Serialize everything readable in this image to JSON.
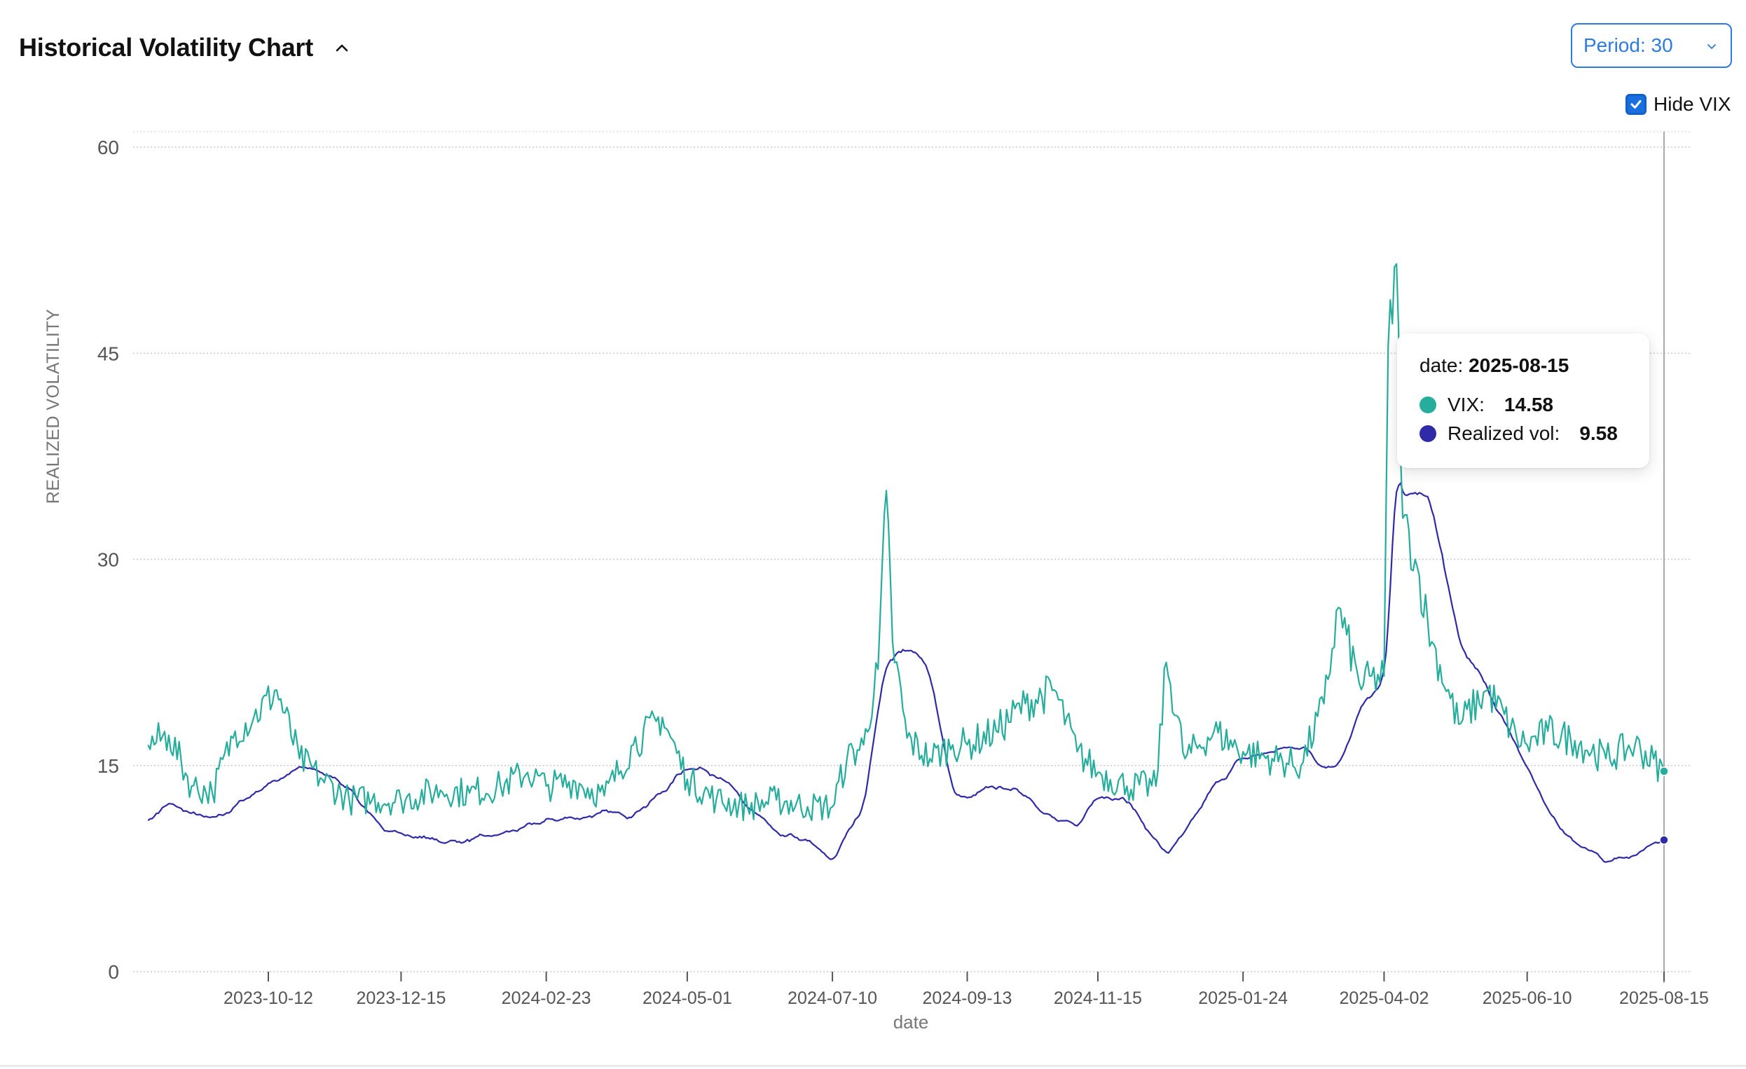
{
  "header": {
    "title": "Historical Volatility Chart",
    "collapse_icon": "chevron-up-icon"
  },
  "period_select": {
    "label": "Period: 30",
    "icon": "chevron-down-icon"
  },
  "hide_vix": {
    "label": "Hide VIX",
    "checked": true
  },
  "tooltip": {
    "date_label": "date:",
    "date_value": "2025-08-15",
    "vix_label": "VIX:",
    "vix_value": "14.58",
    "rv_label": "Realized vol:",
    "rv_value": "9.58"
  },
  "colors": {
    "vix": "#26ad9b",
    "realized": "#2e2aa8",
    "accent": "#2d7be0"
  },
  "chart_data": {
    "type": "line",
    "xlabel": "date",
    "ylabel": "REALIZED VOLATILITY",
    "ylim": [
      0,
      60
    ],
    "yticks": [
      0,
      15,
      30,
      45,
      60
    ],
    "xticks": [
      "2023-10-12",
      "2023-12-15",
      "2024-02-23",
      "2024-05-01",
      "2024-07-10",
      "2024-09-13",
      "2024-11-15",
      "2025-01-24",
      "2025-04-02",
      "2025-06-10",
      "2025-08-15"
    ],
    "grid": "horizontal",
    "series": [
      {
        "name": "VIX",
        "x": [
          "2023-08-15",
          "2023-08-25",
          "2023-09-05",
          "2023-09-15",
          "2023-09-26",
          "2023-10-05",
          "2023-10-16",
          "2023-10-27",
          "2023-11-07",
          "2023-11-20",
          "2023-12-01",
          "2023-12-15",
          "2024-01-03",
          "2024-01-17",
          "2024-02-01",
          "2024-02-14",
          "2024-02-23",
          "2024-03-08",
          "2024-03-22",
          "2024-04-05",
          "2024-04-19",
          "2024-05-01",
          "2024-05-15",
          "2024-05-30",
          "2024-06-13",
          "2024-06-28",
          "2024-07-10",
          "2024-07-17",
          "2024-07-25",
          "2024-08-01",
          "2024-08-05",
          "2024-08-08",
          "2024-08-15",
          "2024-08-26",
          "2024-09-06",
          "2024-09-13",
          "2024-09-27",
          "2024-10-11",
          "2024-10-25",
          "2024-11-05",
          "2024-11-15",
          "2024-11-29",
          "2024-12-13",
          "2024-12-18",
          "2024-12-27",
          "2025-01-10",
          "2025-01-24",
          "2025-02-07",
          "2025-02-21",
          "2025-03-04",
          "2025-03-11",
          "2025-03-21",
          "2025-04-02",
          "2025-04-04",
          "2025-04-08",
          "2025-04-11",
          "2025-04-17",
          "2025-04-25",
          "2025-05-08",
          "2025-05-22",
          "2025-06-05",
          "2025-06-10",
          "2025-06-20",
          "2025-07-03",
          "2025-07-18",
          "2025-08-01",
          "2025-08-15"
        ],
        "y": [
          16.5,
          17.2,
          13.5,
          13.0,
          17.5,
          18.5,
          20.5,
          15.5,
          14.0,
          12.5,
          12.5,
          12.5,
          13.2,
          13.0,
          13.5,
          14.5,
          13.5,
          13.8,
          12.8,
          16.5,
          18.5,
          14.0,
          12.5,
          12.0,
          12.5,
          12.0,
          12.0,
          15.5,
          16.5,
          22.0,
          35.0,
          24.0,
          17.0,
          15.5,
          16.5,
          16.5,
          17.5,
          19.5,
          20.5,
          16.0,
          14.5,
          13.5,
          13.5,
          22.5,
          15.5,
          17.5,
          16.0,
          15.5,
          15.0,
          19.5,
          26.5,
          21.0,
          21.5,
          45.5,
          51.5,
          33.0,
          30.0,
          24.0,
          18.0,
          20.5,
          17.0,
          16.5,
          17.5,
          16.8,
          15.5,
          16.5,
          14.58
        ]
      },
      {
        "name": "Realized vol",
        "x": [
          "2023-08-15",
          "2023-08-25",
          "2023-09-05",
          "2023-09-15",
          "2023-09-26",
          "2023-10-05",
          "2023-10-16",
          "2023-10-27",
          "2023-11-07",
          "2023-11-20",
          "2023-12-01",
          "2023-12-15",
          "2024-01-03",
          "2024-01-17",
          "2024-02-01",
          "2024-02-14",
          "2024-02-23",
          "2024-03-08",
          "2024-03-22",
          "2024-04-05",
          "2024-04-19",
          "2024-05-01",
          "2024-05-15",
          "2024-05-30",
          "2024-06-13",
          "2024-06-28",
          "2024-07-10",
          "2024-07-17",
          "2024-07-25",
          "2024-08-01",
          "2024-08-05",
          "2024-08-08",
          "2024-08-15",
          "2024-08-26",
          "2024-09-06",
          "2024-09-13",
          "2024-09-27",
          "2024-10-11",
          "2024-10-25",
          "2024-11-05",
          "2024-11-15",
          "2024-11-29",
          "2024-12-13",
          "2024-12-18",
          "2024-12-27",
          "2025-01-10",
          "2025-01-24",
          "2025-02-07",
          "2025-02-21",
          "2025-03-04",
          "2025-03-11",
          "2025-03-21",
          "2025-04-02",
          "2025-04-04",
          "2025-04-08",
          "2025-04-11",
          "2025-04-17",
          "2025-04-25",
          "2025-05-08",
          "2025-05-22",
          "2025-06-05",
          "2025-06-10",
          "2025-06-20",
          "2025-07-03",
          "2025-07-18",
          "2025-08-01",
          "2025-08-15"
        ],
        "y": [
          11.0,
          12.2,
          11.5,
          11.0,
          12.0,
          13.0,
          14.0,
          14.8,
          14.5,
          13.5,
          11.0,
          10.0,
          9.5,
          9.5,
          10.0,
          10.5,
          11.0,
          11.2,
          11.5,
          11.5,
          13.0,
          15.0,
          14.5,
          12.0,
          10.0,
          9.5,
          8.0,
          10.0,
          12.0,
          19.0,
          22.5,
          23.0,
          23.5,
          22.0,
          13.0,
          12.5,
          13.5,
          13.0,
          11.0,
          10.5,
          13.0,
          12.5,
          9.5,
          8.5,
          10.0,
          13.5,
          15.5,
          16.0,
          16.5,
          15.0,
          15.0,
          19.0,
          21.0,
          24.0,
          38.0,
          34.0,
          35.0,
          34.0,
          24.0,
          20.5,
          16.5,
          15.0,
          11.5,
          9.5,
          8.0,
          8.5,
          9.58
        ]
      }
    ]
  }
}
